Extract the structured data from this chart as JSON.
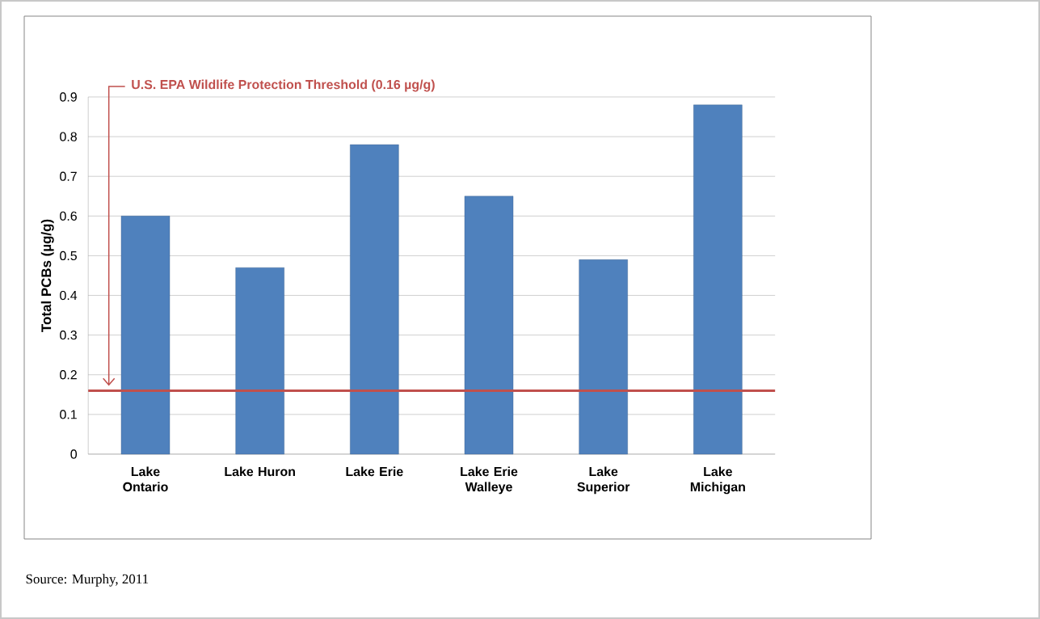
{
  "chart_data": {
    "type": "bar",
    "ylabel": "Total PCBs (µg/g)",
    "categories": [
      "Lake Ontario",
      "Lake Huron",
      "Lake Erie",
      "Lake Erie Walleye",
      "Lake Superior",
      "Lake Michigan"
    ],
    "values": [
      0.6,
      0.47,
      0.78,
      0.65,
      0.49,
      0.88
    ],
    "color": "#4f81bd",
    "ylim": [
      0,
      0.9
    ],
    "yticks": [
      0,
      0.1,
      0.2,
      0.3,
      0.4,
      0.5,
      0.6,
      0.7,
      0.8,
      0.9
    ],
    "grid": "y",
    "ref_lines": [
      {
        "axis": "y",
        "value": 0.16,
        "label": "U.S. EPA Wildlife Protection Threshold (0.16 µg/g)",
        "color": "#c0504d"
      }
    ],
    "annotations": [
      "Source: Murphy, 2011"
    ]
  }
}
